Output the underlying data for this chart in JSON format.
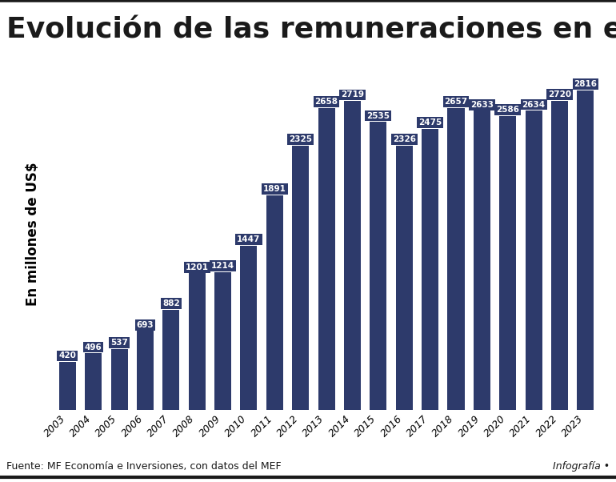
{
  "title": "Evolución de las remuneraciones en el sector público",
  "ylabel": "En millones de US$",
  "years": [
    2003,
    2004,
    2005,
    2006,
    2007,
    2008,
    2009,
    2010,
    2011,
    2012,
    2013,
    2014,
    2015,
    2016,
    2017,
    2018,
    2019,
    2020,
    2021,
    2022,
    2023
  ],
  "values": [
    420,
    496,
    537,
    693,
    882,
    1201,
    1214,
    1447,
    1891,
    2325,
    2658,
    2719,
    2535,
    2326,
    2475,
    2657,
    2633,
    2586,
    2634,
    2720,
    2816
  ],
  "bar_color": "#2d3a6b",
  "label_bg_color": "#2d3a6b",
  "label_text_color": "#ffffff",
  "background_color": "#ffffff",
  "source_text": "Fuente: MF Economía e Inversiones, con datos del MEF",
  "infografia_text": "Infografía •",
  "title_fontsize": 26,
  "ylabel_fontsize": 12,
  "label_fontsize": 7.5,
  "source_fontsize": 9,
  "ylim": [
    0,
    3100
  ],
  "bar_width": 0.65
}
